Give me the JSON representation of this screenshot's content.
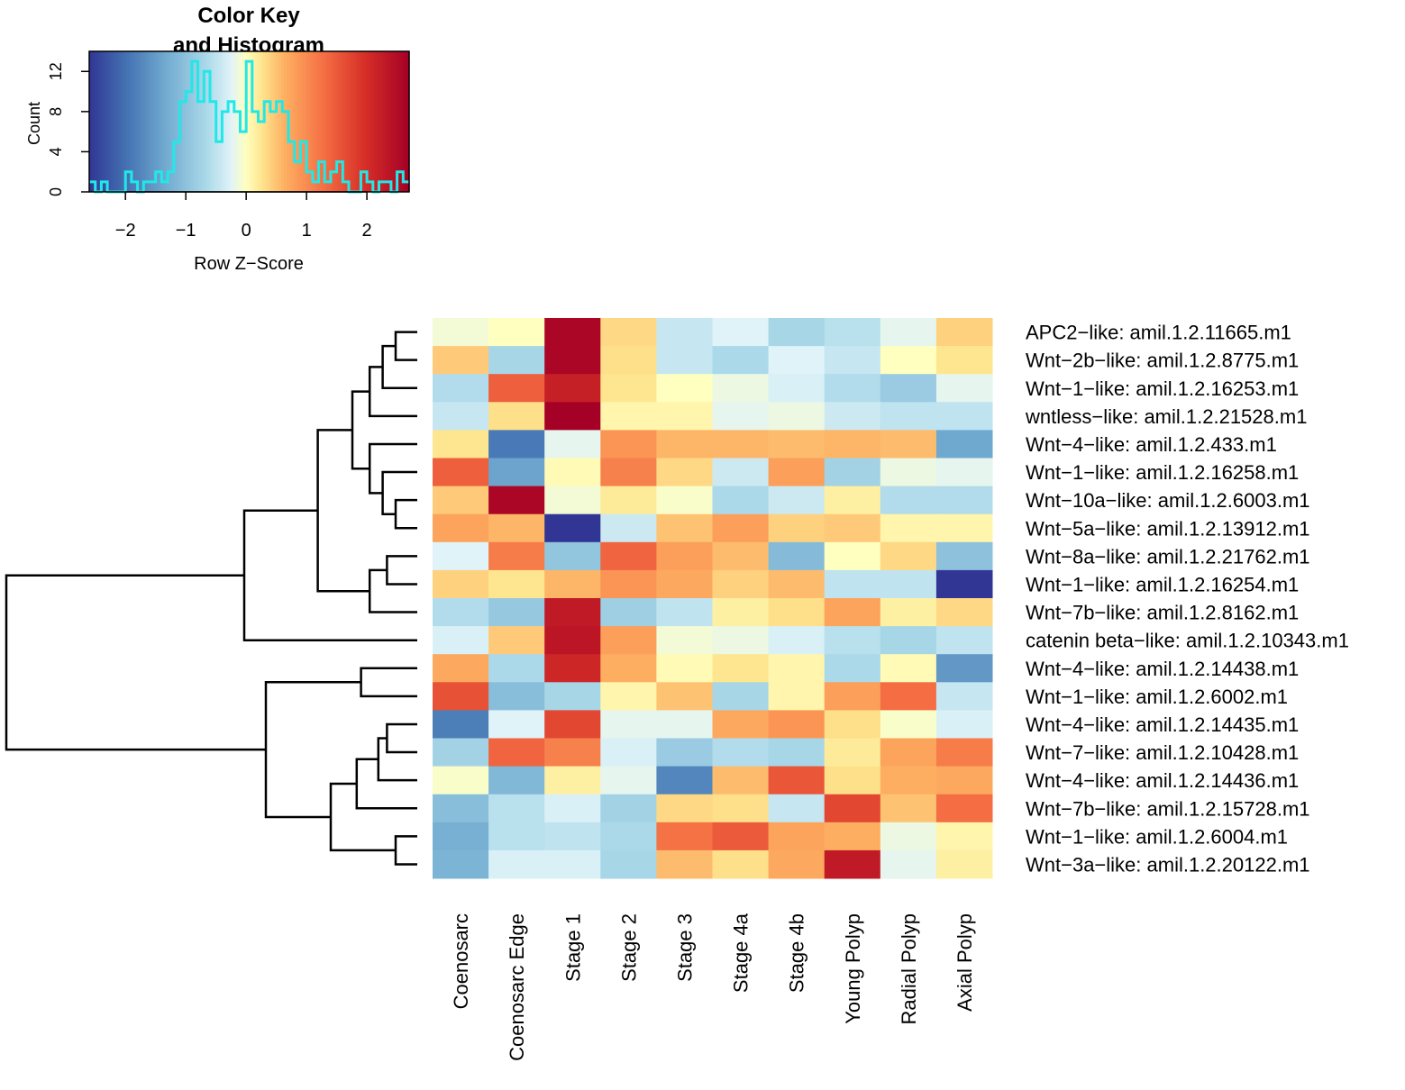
{
  "chart_data": {
    "type": "heatmap",
    "key": {
      "title_line1": "Color Key",
      "title_line2": "and Histogram",
      "ylabel": "Count",
      "xlabel": "Row Z−Score",
      "xticks": [
        "−2",
        "−1",
        "0",
        "1",
        "2"
      ],
      "xtick_values": [
        -2,
        -1,
        0,
        1,
        2
      ],
      "yticks": [
        "0",
        "4",
        "8",
        "12"
      ],
      "ytick_values": [
        0,
        4,
        8,
        12
      ],
      "xlim": [
        -2.6,
        2.7
      ],
      "ylim": [
        0,
        14
      ],
      "hist_color": "#21e8e8",
      "hist_breaks": [
        -2.6,
        -2.5,
        -2.4,
        -2.3,
        -2.2,
        -2.1,
        -2.0,
        -1.9,
        -1.8,
        -1.7,
        -1.6,
        -1.5,
        -1.4,
        -1.3,
        -1.2,
        -1.1,
        -1.0,
        -0.9,
        -0.8,
        -0.7,
        -0.6,
        -0.5,
        -0.4,
        -0.3,
        -0.2,
        -0.1,
        0.0,
        0.1,
        0.2,
        0.3,
        0.4,
        0.5,
        0.6,
        0.7,
        0.8,
        0.9,
        1.0,
        1.1,
        1.2,
        1.3,
        1.4,
        1.5,
        1.6,
        1.7,
        1.8,
        1.9,
        2.0,
        2.1,
        2.2,
        2.3,
        2.4,
        2.5,
        2.6,
        2.7
      ],
      "hist_counts": [
        1,
        0,
        1,
        0,
        0,
        0,
        2,
        1,
        0,
        1,
        1,
        2,
        1,
        2,
        5,
        9,
        10,
        13,
        9,
        12,
        9,
        5,
        8,
        9,
        8,
        6,
        13,
        8,
        7,
        9,
        8,
        9,
        8,
        5,
        3,
        5,
        2,
        1,
        3,
        1,
        2,
        3,
        1,
        0,
        0,
        2,
        1,
        0,
        1,
        1,
        0,
        2,
        1
      ]
    },
    "columns": [
      "Coenosarc",
      "Coenosarc Edge",
      "Stage 1",
      "Stage 2",
      "Stage 3",
      "Stage 4a",
      "Stage 4b",
      "Young Polyp",
      "Radial Polyp",
      "Axial Polyp"
    ],
    "rows": [
      "APC2−like: amil.1.2.11665.m1",
      "Wnt−2b−like: amil.1.2.8775.m1",
      "Wnt−1−like: amil.1.2.16253.m1",
      "wntless−like: amil.1.2.21528.m1",
      "Wnt−4−like: amil.1.2.433.m1",
      "Wnt−1−like: amil.1.2.16258.m1",
      "Wnt−10a−like: amil.1.2.6003.m1",
      "Wnt−5a−like: amil.1.2.13912.m1",
      "Wnt−8a−like: amil.1.2.21762.m1",
      "Wnt−1−like: amil.1.2.16254.m1",
      "Wnt−7b−like: amil.1.2.8162.m1",
      "catenin beta−like: amil.1.2.10343.m1",
      "Wnt−4−like: amil.1.2.14438.m1",
      "Wnt−1−like: amil.1.2.6002.m1",
      "Wnt−4−like: amil.1.2.14435.m1",
      "Wnt−7−like: amil.1.2.10428.m1",
      "Wnt−4−like: amil.1.2.14436.m1",
      "Wnt−7b−like: amil.1.2.15728.m1",
      "Wnt−1−like: amil.1.2.6004.m1",
      "Wnt−3a−like: amil.1.2.20122.m1"
    ],
    "values": [
      [
        -0.1,
        0.0,
        2.6,
        0.35,
        -0.45,
        -0.25,
        -0.7,
        -0.55,
        -0.2,
        0.4
      ],
      [
        0.45,
        -0.7,
        2.6,
        0.3,
        -0.45,
        -0.65,
        -0.25,
        -0.45,
        0.0,
        0.25
      ],
      [
        -0.6,
        1.45,
        2.2,
        0.25,
        0.0,
        -0.15,
        -0.3,
        -0.6,
        -0.85,
        -0.2
      ],
      [
        -0.45,
        0.3,
        2.7,
        0.1,
        0.1,
        -0.2,
        -0.15,
        -0.4,
        -0.5,
        -0.5
      ],
      [
        0.25,
        -1.9,
        -0.2,
        0.9,
        0.6,
        0.6,
        0.55,
        0.6,
        0.55,
        -1.35
      ],
      [
        1.45,
        -1.4,
        0.05,
        1.1,
        0.35,
        -0.4,
        0.8,
        -0.75,
        -0.15,
        -0.2
      ],
      [
        0.45,
        2.6,
        -0.1,
        0.2,
        -0.05,
        -0.65,
        -0.4,
        0.15,
        -0.6,
        -0.6
      ],
      [
        0.75,
        0.6,
        -2.6,
        -0.4,
        0.5,
        0.8,
        0.4,
        0.45,
        0.1,
        0.1
      ],
      [
        -0.25,
        1.15,
        -0.95,
        1.4,
        0.8,
        0.55,
        -1.1,
        0.0,
        0.35,
        -1.0
      ],
      [
        0.4,
        0.25,
        0.6,
        0.9,
        0.7,
        0.4,
        0.55,
        -0.5,
        -0.5,
        -2.6
      ],
      [
        -0.6,
        -0.9,
        2.3,
        -0.8,
        -0.5,
        0.15,
        0.3,
        0.75,
        0.15,
        0.35
      ],
      [
        -0.3,
        0.45,
        2.35,
        0.8,
        -0.1,
        -0.15,
        -0.3,
        -0.55,
        -0.7,
        -0.5
      ],
      [
        0.7,
        -0.65,
        2.1,
        0.65,
        0.05,
        0.25,
        0.1,
        -0.65,
        0.05,
        -1.55
      ],
      [
        1.6,
        -1.05,
        -0.7,
        0.1,
        0.5,
        -0.7,
        0.1,
        0.8,
        1.3,
        -0.45
      ],
      [
        -1.85,
        -0.25,
        1.7,
        -0.2,
        -0.2,
        0.7,
        0.9,
        0.3,
        -0.05,
        -0.3
      ],
      [
        -0.75,
        1.4,
        1.1,
        -0.3,
        -0.85,
        -0.6,
        -0.7,
        0.2,
        0.75,
        1.15
      ],
      [
        -0.05,
        -1.15,
        0.15,
        -0.2,
        -1.75,
        0.55,
        1.55,
        0.3,
        0.65,
        0.7
      ],
      [
        -1.05,
        -0.55,
        -0.3,
        -0.75,
        0.35,
        0.3,
        -0.45,
        1.7,
        0.5,
        1.3
      ],
      [
        -1.25,
        -0.55,
        -0.5,
        -0.65,
        1.25,
        1.5,
        0.75,
        0.65,
        -0.15,
        0.1
      ],
      [
        -1.2,
        -0.3,
        -0.3,
        -0.7,
        0.55,
        0.3,
        0.7,
        2.3,
        -0.2,
        0.15
      ]
    ],
    "row_dendrogram": {
      "merges": [
        [
          -1,
          -2,
          0.05
        ],
        [
          -7,
          -8,
          0.05
        ],
        [
          -19,
          -20,
          0.05
        ],
        [
          -9,
          -10,
          0.07
        ],
        [
          -15,
          -16,
          0.07
        ],
        [
          -3,
          1,
          0.08
        ],
        [
          -6,
          2,
          0.08
        ],
        [
          -17,
          5,
          0.09
        ],
        [
          -4,
          6,
          0.11
        ],
        [
          -5,
          7,
          0.11
        ],
        [
          -11,
          4,
          0.11
        ],
        [
          -13,
          -14,
          0.13
        ],
        [
          -18,
          8,
          0.14
        ],
        [
          9,
          10,
          0.15
        ],
        [
          13,
          3,
          0.2
        ],
        [
          14,
          11,
          0.23
        ],
        [
          15,
          12,
          0.35
        ],
        [
          16,
          -12,
          0.4
        ],
        [
          17,
          18,
          0.95
        ]
      ]
    }
  }
}
